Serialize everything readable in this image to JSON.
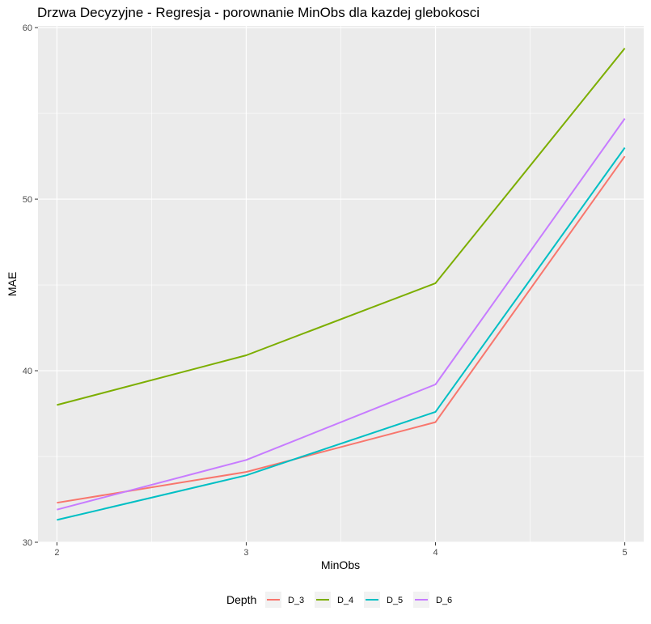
{
  "chart_data": {
    "type": "line",
    "title": "Drzwa Decyzyjne - Regresja - porownanie MinObs dla kazdej glebokosci",
    "xlabel": "MinObs",
    "ylabel": "MAE",
    "x": [
      2,
      3,
      4,
      5
    ],
    "xlim": [
      1.9,
      5.1
    ],
    "ylim": [
      30,
      60.1
    ],
    "x_ticks": [
      2,
      3,
      4,
      5
    ],
    "y_ticks": [
      30,
      40,
      50,
      60
    ],
    "grid": true,
    "legend": {
      "title": "Depth",
      "placement": "bottom"
    },
    "series": [
      {
        "name": "D_3",
        "color": "#F8766D",
        "values": [
          32.3,
          34.1,
          37.0,
          52.5
        ]
      },
      {
        "name": "D_4",
        "color": "#7CAE00",
        "values": [
          38.0,
          40.9,
          45.1,
          58.8
        ]
      },
      {
        "name": "D_5",
        "color": "#00BFC4",
        "values": [
          31.3,
          33.9,
          37.6,
          53.0
        ]
      },
      {
        "name": "D_6",
        "color": "#C77CFF",
        "values": [
          31.9,
          34.8,
          39.2,
          54.7
        ]
      }
    ],
    "panel_background": "#EBEBEB",
    "grid_color": "#FFFFFF",
    "axis_text_color": "#4D4D4D"
  }
}
